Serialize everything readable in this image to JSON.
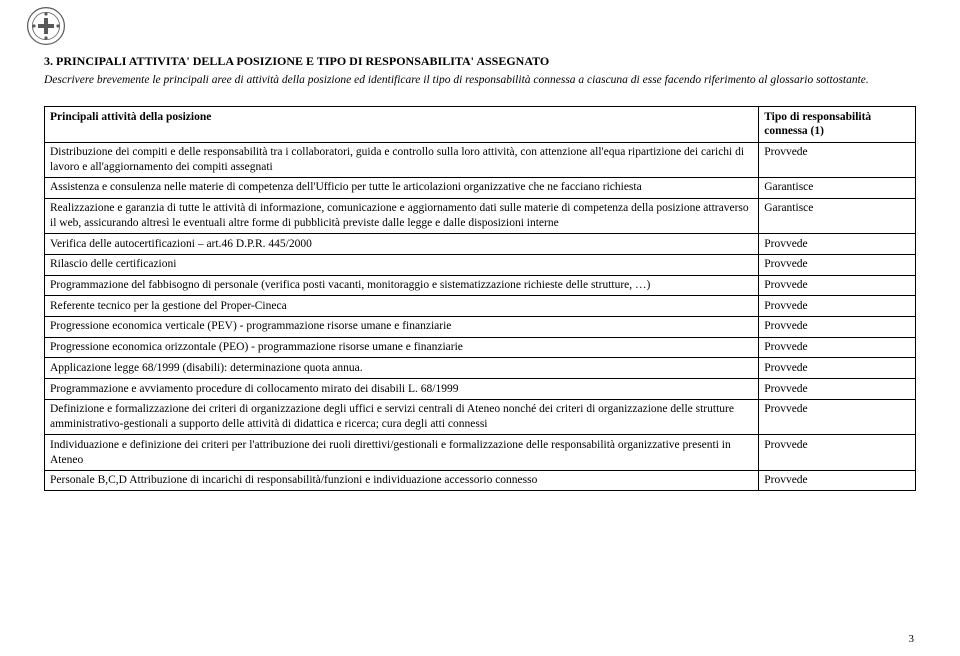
{
  "logo_color": "#5a5a5a",
  "section_title": "3. PRINCIPALI ATTIVITA' DELLA POSIZIONE E TIPO DI RESPONSABILITA' ASSEGNATO",
  "intro_text": "Descrivere brevemente le principali aree di attività della posizione ed identificare il tipo di responsabilità connessa a ciascuna di esse facendo riferimento al glossario sottostante.",
  "table": {
    "header_activity": "Principali attività della posizione",
    "header_resp": "Tipo di responsabilità connessa (1)",
    "rows": [
      {
        "activity": "Distribuzione dei compiti e delle responsabilità tra i collaboratori, guida e controllo sulla loro attività, con attenzione all'equa ripartizione dei carichi di lavoro e all'aggiornamento dei compiti assegnati",
        "resp": "Provvede"
      },
      {
        "activity": "Assistenza e consulenza nelle materie di competenza dell'Ufficio per tutte le articolazioni organizzative che ne facciano richiesta",
        "resp": "Garantisce"
      },
      {
        "activity": "Realizzazione e garanzia di tutte le attività di informazione, comunicazione e aggiornamento dati sulle materie di competenza della posizione attraverso il web, assicurando altresì le eventuali altre forme di pubblicità previste dalle legge e dalle disposizioni interne",
        "resp": "Garantisce"
      },
      {
        "activity": "Verifica delle autocertificazioni – art.46 D.P.R. 445/2000",
        "resp": "Provvede"
      },
      {
        "activity": "Rilascio delle certificazioni",
        "resp": "Provvede"
      },
      {
        "activity": "Programmazione del fabbisogno di personale (verifica posti vacanti, monitoraggio e sistematizzazione richieste delle strutture, …)",
        "resp": "Provvede"
      },
      {
        "activity": "Referente tecnico per la gestione del Proper-Cineca",
        "resp": "Provvede"
      },
      {
        "activity": "Progressione economica verticale (PEV) - programmazione risorse umane e finanziarie",
        "resp": "Provvede"
      },
      {
        "activity": "Progressione economica orizzontale (PEO) - programmazione risorse umane e finanziarie",
        "resp": "Provvede"
      },
      {
        "activity": "Applicazione legge 68/1999 (disabili): determinazione quota annua.",
        "resp": "Provvede"
      },
      {
        "activity": "Programmazione e avviamento procedure di collocamento mirato dei disabili L. 68/1999",
        "resp": "Provvede"
      },
      {
        "activity": "Definizione e formalizzazione dei criteri di organizzazione degli uffici e servizi centrali di Ateneo nonché dei criteri di organizzazione delle strutture amministrativo-gestionali a supporto delle attività di didattica e ricerca; cura degli atti connessi",
        "resp": "Provvede"
      },
      {
        "activity": "Individuazione e definizione dei criteri per l'attribuzione dei ruoli direttivi/gestionali e formalizzazione delle responsabilità organizzative presenti in Ateneo",
        "resp": "Provvede"
      },
      {
        "activity": "Personale B,C,D Attribuzione di incarichi di responsabilità/funzioni e individuazione accessorio connesso",
        "resp": "Provvede"
      }
    ]
  },
  "page_number": "3"
}
